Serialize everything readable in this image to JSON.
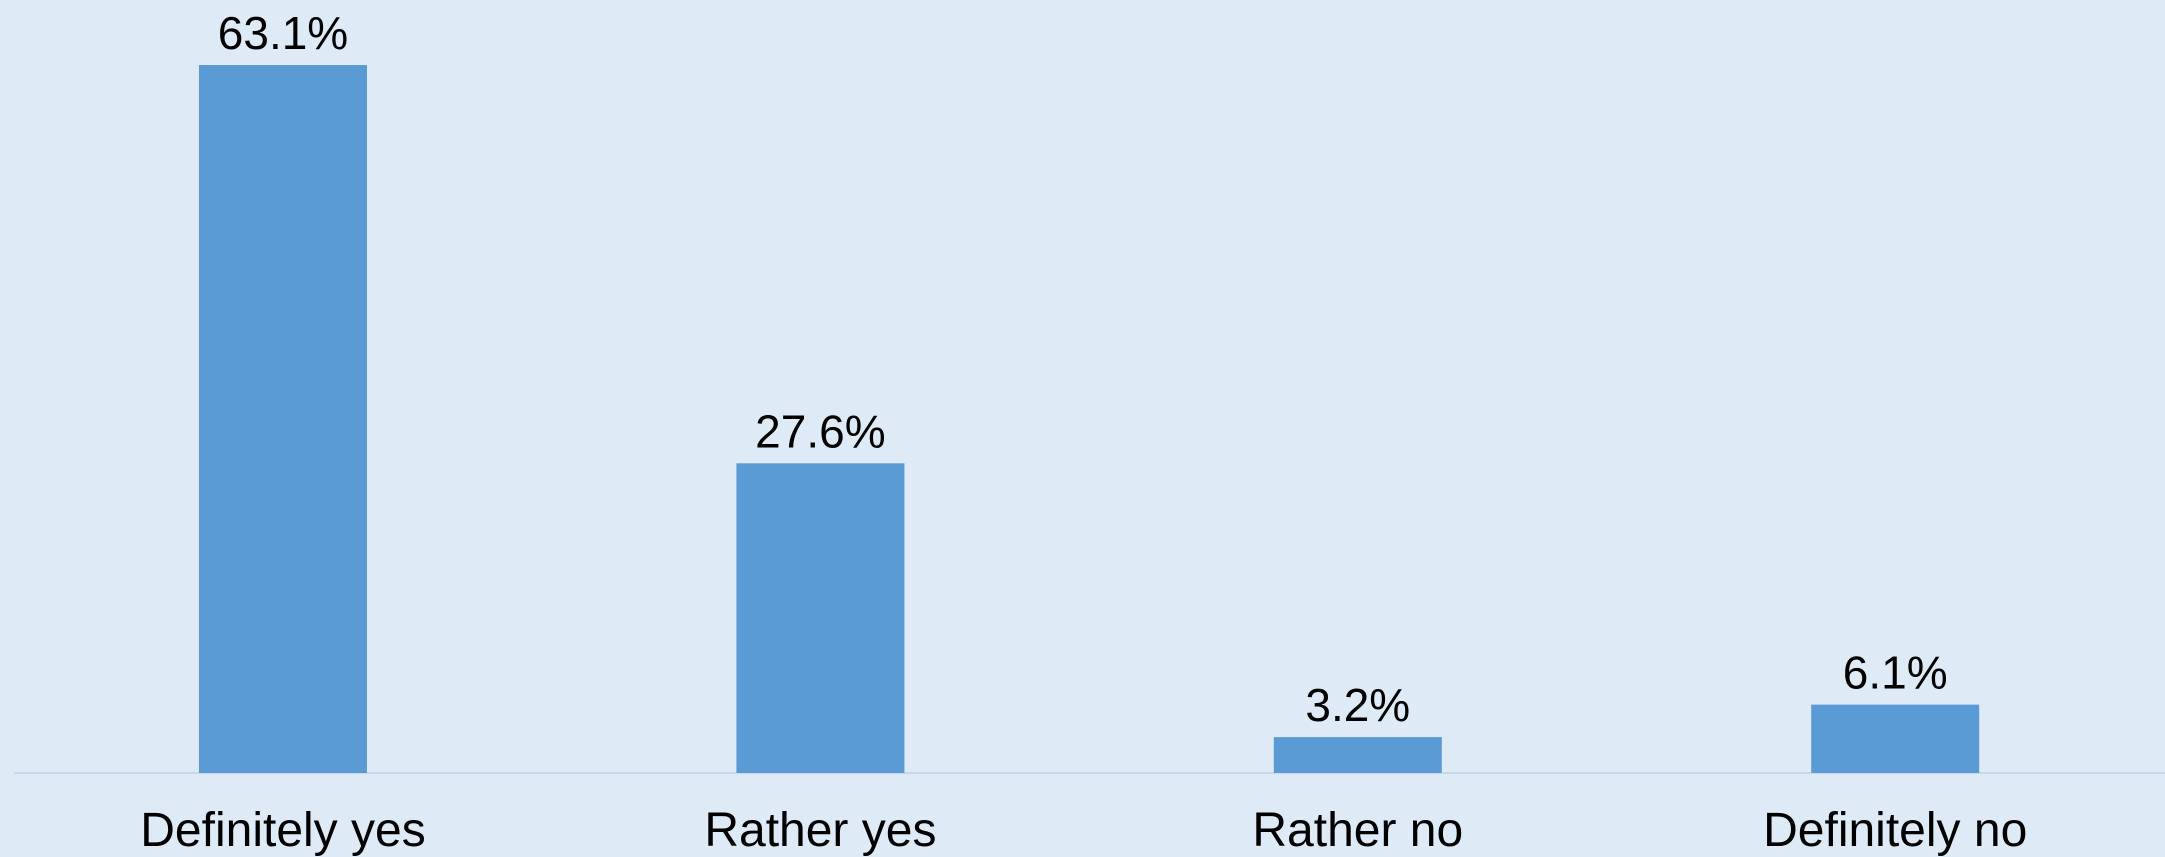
{
  "chart_data": {
    "type": "bar",
    "categories": [
      "Definitely yes",
      "Rather yes",
      "Rather no",
      "Definitely no"
    ],
    "values": [
      63.1,
      27.6,
      3.2,
      6.1
    ],
    "data_labels": [
      "63.1%",
      "27.6%",
      "3.2%",
      "6.1%"
    ],
    "title": "",
    "xlabel": "",
    "ylabel": "",
    "ylim": [
      0,
      63.1
    ],
    "grid": false,
    "legend": "none",
    "colors": {
      "background": "#DEEAF6",
      "bar": "#5B9BD5",
      "axis": "#C9D7E6",
      "text": "#000000"
    }
  }
}
